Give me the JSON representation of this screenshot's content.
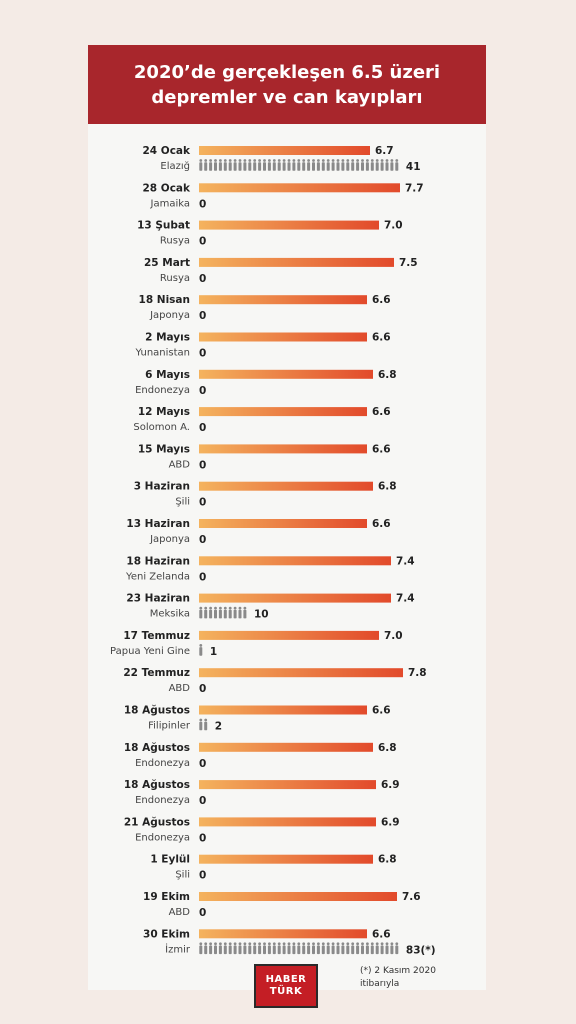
{
  "title_line1": "2020’de gerçekleşen 6.5 üzeri",
  "title_line2": "depremler ve can kayıpları",
  "colors": {
    "header_bg": "#a8262c",
    "bar_start": "#f4b35e",
    "bar_end": "#e24a2b",
    "person_icon": "#8a8a8a"
  },
  "chart_data": {
    "type": "bar",
    "orientation": "horizontal",
    "categories": [
      "24 Ocak",
      "28 Ocak",
      "13 Şubat",
      "25 Mart",
      "18 Nisan",
      "2 Mayıs",
      "6 Mayıs",
      "12 Mayıs",
      "15 Mayıs",
      "3 Haziran",
      "13 Haziran",
      "18 Haziran",
      "23 Haziran",
      "17 Temmuz",
      "22 Temmuz",
      "18 Ağustos",
      "18 Ağustos",
      "18 Ağustos",
      "21 Ağustos",
      "1 Eylül",
      "19 Ekim",
      "30 Ekim"
    ],
    "locations": [
      "Elazığ",
      "Jamaika",
      "Rusya",
      "Rusya",
      "Japonya",
      "Yunanistan",
      "Endonezya",
      "Solomon A.",
      "ABD",
      "Şili",
      "Japonya",
      "Yeni Zelanda",
      "Meksika",
      "Papua Yeni Gine",
      "ABD",
      "Filipinler",
      "Endonezya",
      "Endonezya",
      "Endonezya",
      "Şili",
      "ABD",
      "İzmir"
    ],
    "series": [
      {
        "values": [
          6.7,
          7.7,
          7.0,
          7.5,
          6.6,
          6.6,
          6.8,
          6.6,
          6.6,
          6.8,
          6.6,
          7.4,
          7.4,
          7.0,
          7.8,
          6.6,
          6.8,
          6.9,
          6.9,
          6.8,
          7.6,
          6.6
        ]
      },
      {
        "values": [
          41,
          0,
          0,
          0,
          0,
          0,
          0,
          0,
          0,
          0,
          0,
          0,
          10,
          1,
          0,
          2,
          0,
          0,
          0,
          0,
          0,
          83
        ]
      }
    ],
    "death_labels": [
      "41",
      "0",
      "0",
      "0",
      "0",
      "0",
      "0",
      "0",
      "0",
      "0",
      "0",
      "0",
      "10",
      "1",
      "0",
      "2",
      "0",
      "0",
      "0",
      "0",
      "0",
      "83(*)"
    ]
  },
  "logo": {
    "line1": "HABER",
    "line2": "TÜRK"
  },
  "footnote": {
    "line1": "(*) 2 Kasım 2020",
    "line2": "itibarıyla"
  }
}
